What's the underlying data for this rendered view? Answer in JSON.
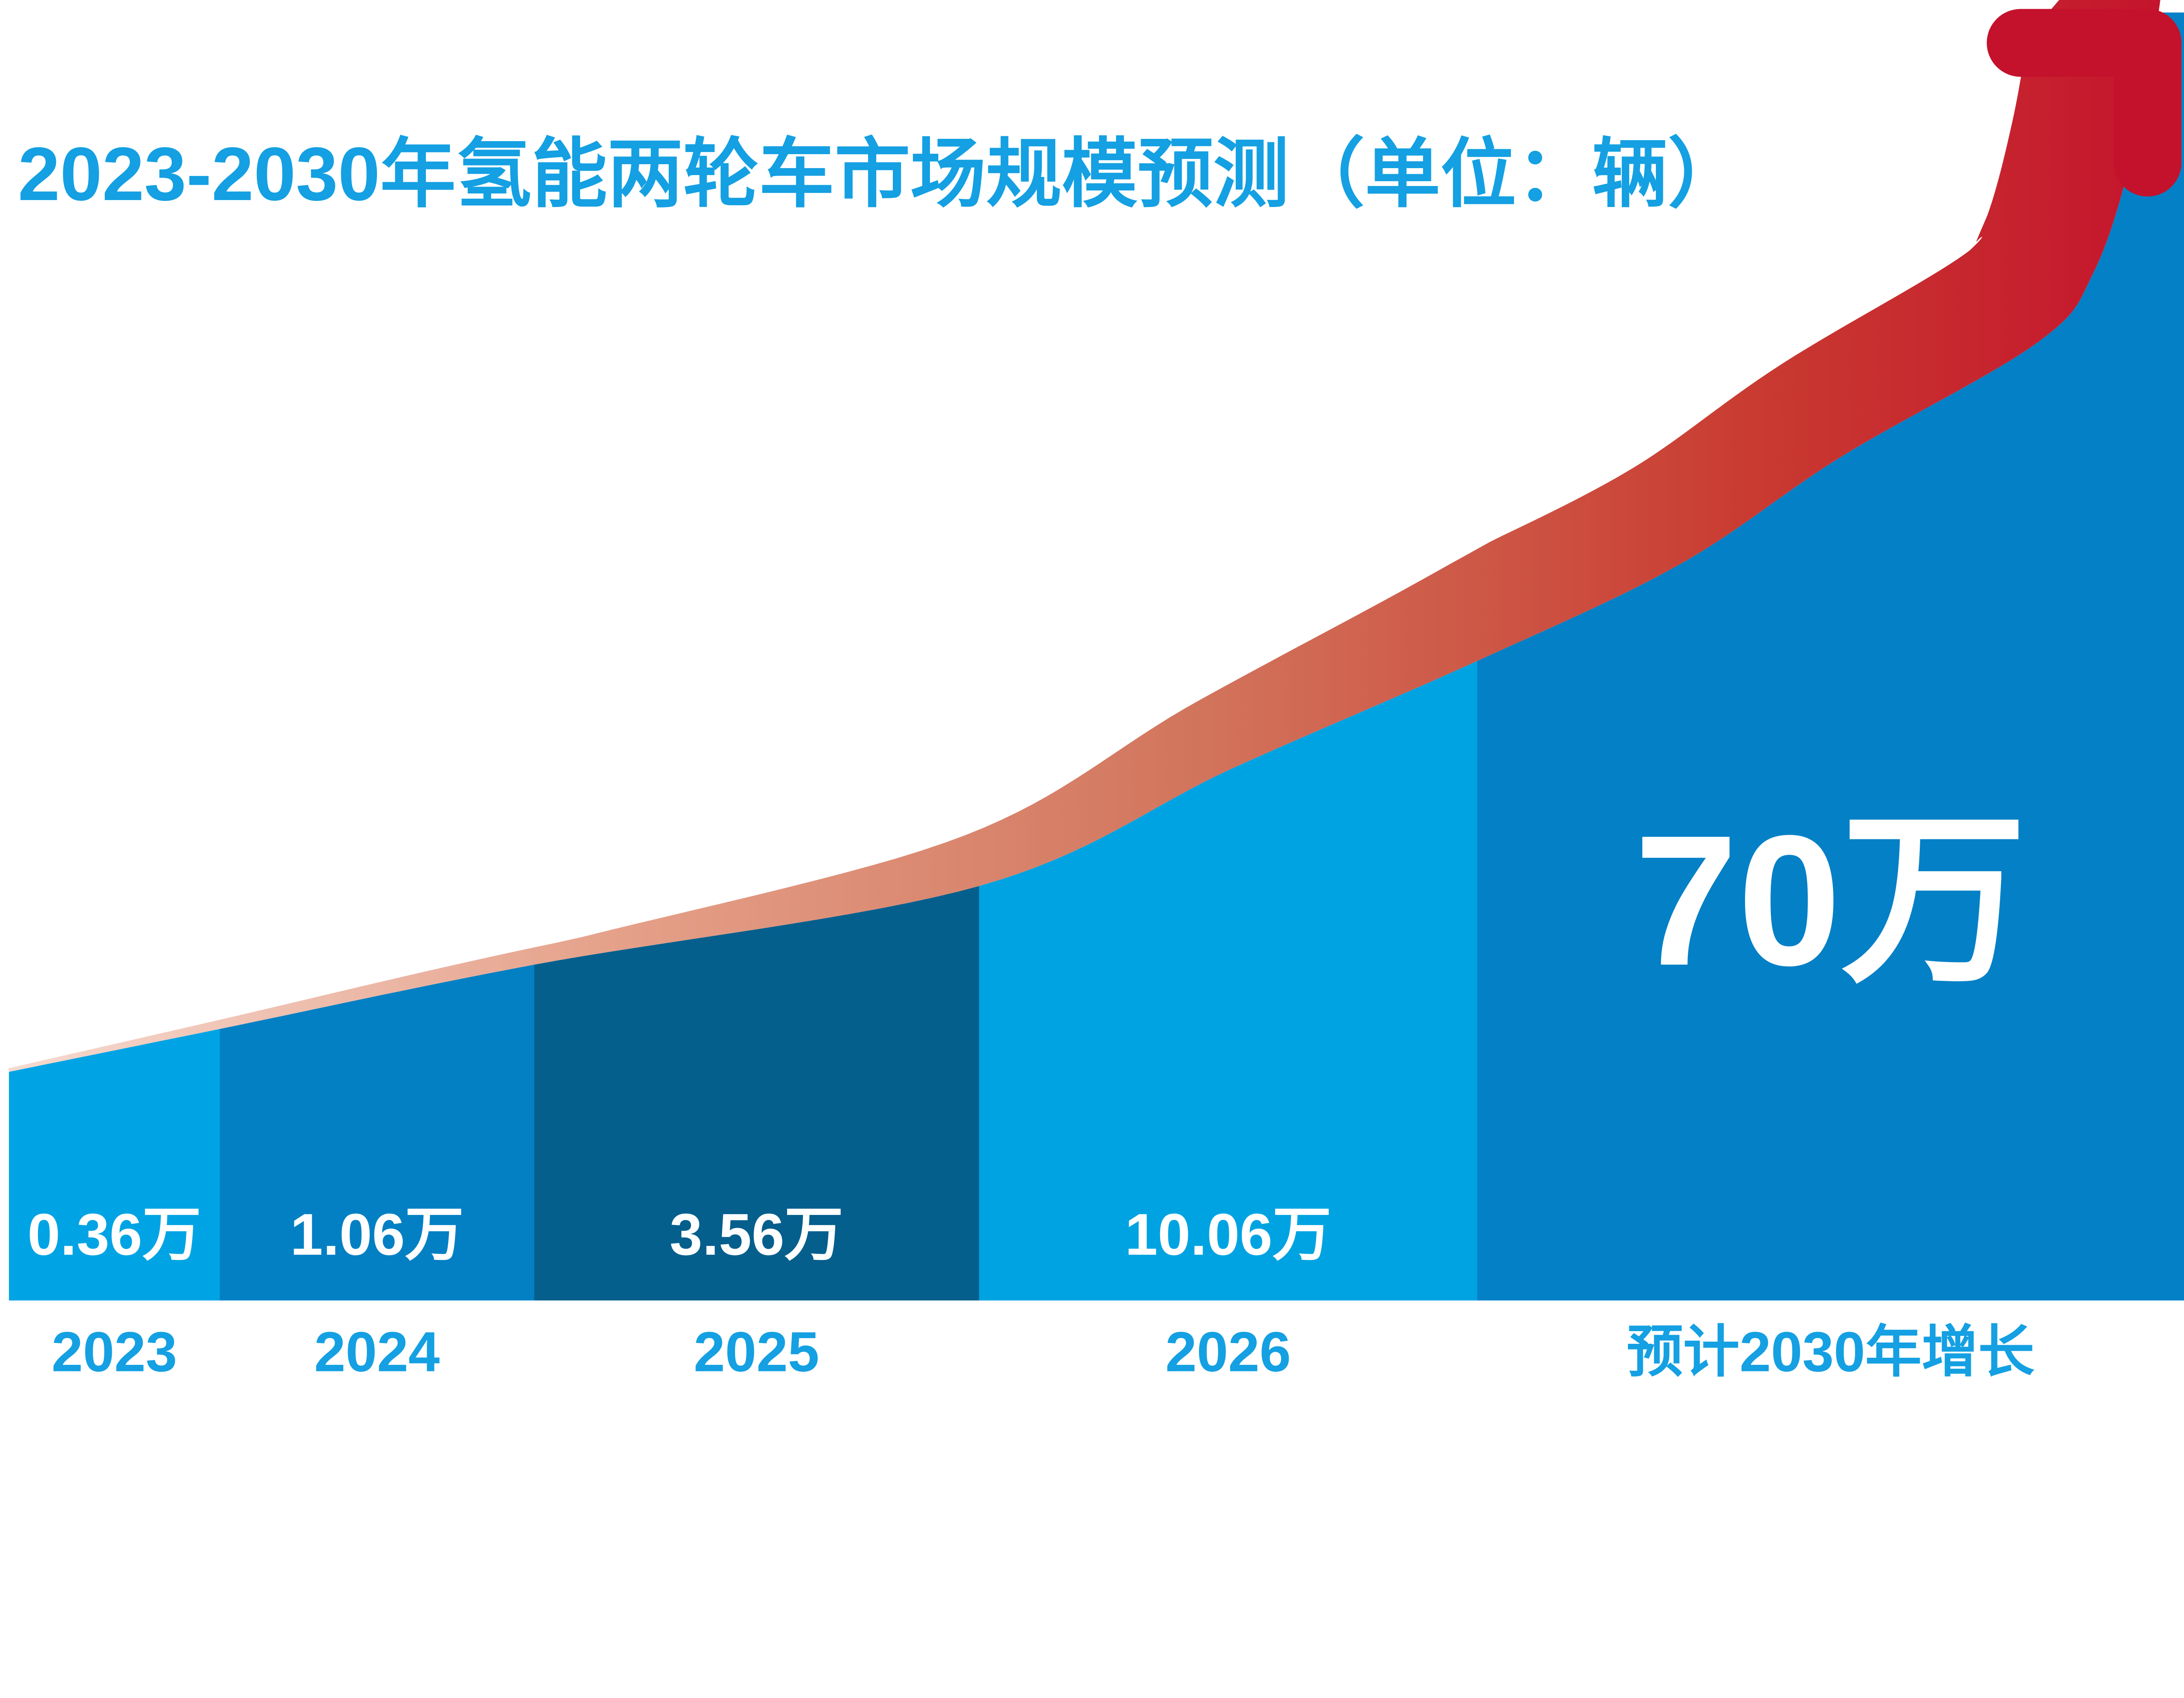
{
  "title": "2023-2030年氢能两轮车市场规模预测（单位：辆）",
  "colors": {
    "background": "#FFFFFF",
    "title": "#14A0E2",
    "year_label": "#14A0E2",
    "value_label": "#FFFFFF"
  },
  "bars": [
    {
      "year": "2023",
      "value": "0.36万",
      "color": "#00A4E4"
    },
    {
      "year": "2024",
      "value": "1.06万",
      "color": "#0380C4"
    },
    {
      "year": "2025",
      "value": "3.56万",
      "color": "#055F8D"
    },
    {
      "year": "2026",
      "value": "10.06万",
      "color": "#00A3E2"
    },
    {
      "year": "预计2030年增长",
      "value": "70万",
      "color": "#0480C6"
    }
  ],
  "arrow": {
    "gradient": [
      "#F6DBD1",
      "#E5A18A",
      "#D2745C",
      "#C93B31",
      "#C4122C"
    ],
    "head_color": "#C4122C"
  },
  "chart_data": {
    "type": "bar",
    "title": "2023-2030年氢能两轮车市场规模预测",
    "unit_label": "单位：辆",
    "categories": [
      "2023",
      "2024",
      "2025",
      "2026",
      "预计2030年增长"
    ],
    "values_wan": [
      0.36,
      1.06,
      3.56,
      10.06,
      70
    ],
    "value_labels": [
      "0.36万",
      "1.06万",
      "3.56万",
      "10.06万",
      "70万"
    ],
    "series": [
      {
        "name": "市场规模",
        "values": [
          0.36,
          1.06,
          3.56,
          10.06,
          70
        ]
      }
    ],
    "xlabel": "",
    "ylabel": "",
    "legend": "none",
    "grid": false,
    "annotation": "rising-trend-arrow"
  }
}
